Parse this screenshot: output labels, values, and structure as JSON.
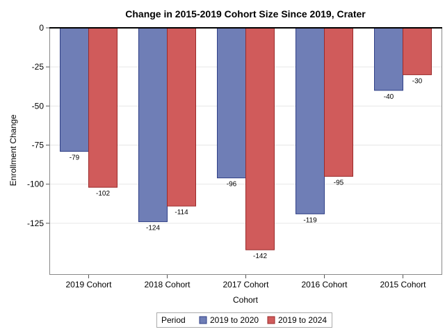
{
  "chart_data": {
    "type": "bar",
    "title": "Change in 2015-2019 Cohort Size Since 2019, Crater",
    "xlabel": "Cohort",
    "ylabel": "Enrollment Change",
    "categories": [
      "2019 Cohort",
      "2018 Cohort",
      "2017 Cohort",
      "2016 Cohort",
      "2015 Cohort"
    ],
    "series": [
      {
        "name": "2019 to 2020",
        "values": [
          -79,
          -124,
          -96,
          -119,
          -40
        ],
        "color": "#6f7eb6",
        "stroke": "#2f3f86"
      },
      {
        "name": "2019 to 2024",
        "values": [
          -102,
          -114,
          -142,
          -95,
          -30
        ],
        "color": "#d05b5b",
        "stroke": "#9a2a2a"
      }
    ],
    "ylim": [
      -150,
      0
    ],
    "yticks": [
      0,
      -25,
      -50,
      -75,
      -100,
      -125
    ],
    "grid": true,
    "legend_title": "Period",
    "legend_position": "bottom-center"
  }
}
